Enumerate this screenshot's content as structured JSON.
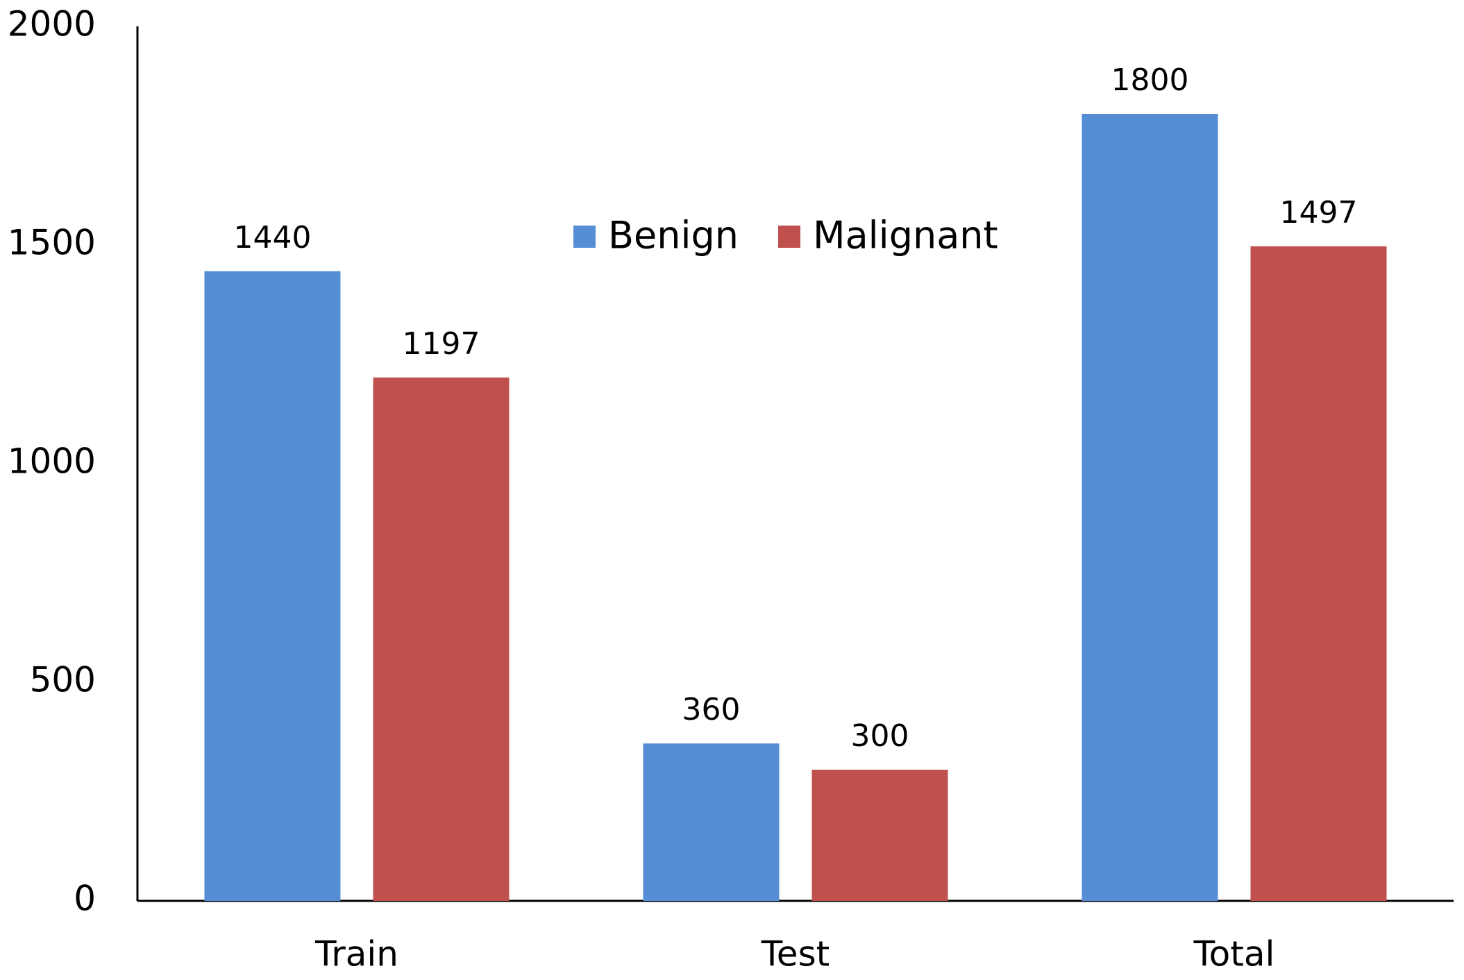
{
  "chart_data": {
    "type": "bar",
    "categories": [
      "Train",
      "Test",
      "Total"
    ],
    "series": [
      {
        "name": "Benign",
        "color": "#558ed5",
        "values": [
          1440,
          360,
          1800
        ]
      },
      {
        "name": "Malignant",
        "color": "#c0504d",
        "values": [
          1197,
          300,
          1497
        ]
      }
    ],
    "ylim": [
      0,
      2000
    ],
    "yticks": [
      0,
      500,
      1000,
      1500,
      2000
    ],
    "grid": false,
    "legend": "top"
  }
}
